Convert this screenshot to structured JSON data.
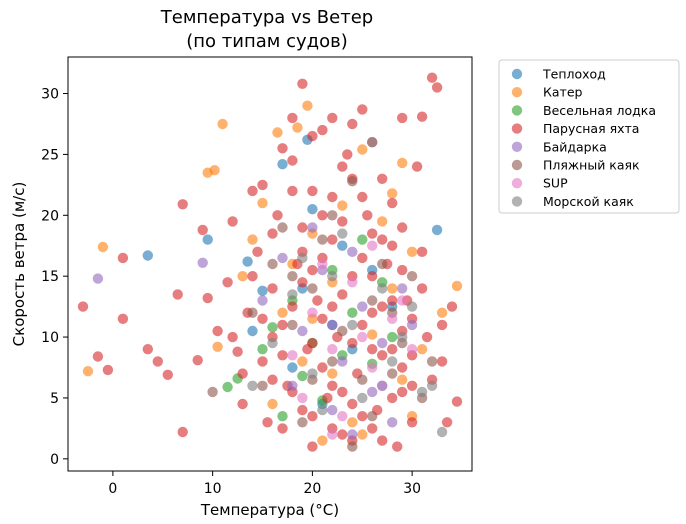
{
  "chart_data": {
    "type": "scatter",
    "title": [
      "Температура vs Ветер",
      "(по типам судов)"
    ],
    "xlabel": "Температура (°C)",
    "ylabel": "Скорость ветра (м/с)",
    "xlim": [
      -4.5,
      36
    ],
    "ylim": [
      -1,
      33
    ],
    "xticks": [
      0,
      10,
      20,
      30
    ],
    "yticks": [
      0,
      5,
      10,
      15,
      20,
      25,
      30
    ],
    "grid": false,
    "legend_position": "outside-right-top",
    "series": [
      {
        "name": "Теплоход",
        "color": "#1f77b4",
        "points": [
          [
            3.5,
            16.7
          ],
          [
            9.5,
            18.0
          ],
          [
            13.5,
            16.2
          ],
          [
            17,
            24.2
          ],
          [
            19.5,
            26.2
          ],
          [
            32.5,
            18.8
          ],
          [
            20,
            20.5
          ],
          [
            15,
            13.8
          ],
          [
            22,
            11.0
          ],
          [
            26,
            15.5
          ],
          [
            24,
            9.0
          ],
          [
            18,
            7.5
          ],
          [
            28,
            12.5
          ],
          [
            14,
            10.5
          ],
          [
            21,
            4.5
          ],
          [
            27,
            6.0
          ],
          [
            23,
            17.5
          ],
          [
            19,
            14.0
          ]
        ]
      },
      {
        "name": "Катер",
        "color": "#ff7f0e",
        "points": [
          [
            -1.0,
            17.4
          ],
          [
            -2.5,
            7.2
          ],
          [
            9.5,
            23.5
          ],
          [
            10.2,
            23.7
          ],
          [
            11,
            27.5
          ],
          [
            16.5,
            26.8
          ],
          [
            18.5,
            27.2
          ],
          [
            19.5,
            29.0
          ],
          [
            25,
            25.4
          ],
          [
            29,
            24.3
          ],
          [
            34.5,
            14.2
          ],
          [
            10.5,
            9.2
          ],
          [
            15,
            21.0
          ],
          [
            20,
            18.5
          ],
          [
            28,
            21.8
          ],
          [
            30,
            17.0
          ],
          [
            22,
            14.5
          ],
          [
            26,
            10.2
          ],
          [
            17,
            12.0
          ],
          [
            24,
            3.0
          ],
          [
            21,
            1.5
          ],
          [
            31,
            9.0
          ],
          [
            13,
            15.0
          ],
          [
            27,
            19.5
          ],
          [
            19,
            8.0
          ],
          [
            23,
            20.8
          ],
          [
            29,
            6.5
          ],
          [
            16,
            4.5
          ],
          [
            33,
            12.0
          ],
          [
            25,
            2.0
          ],
          [
            20,
            11.5
          ],
          [
            18,
            16.0
          ],
          [
            28,
            14.0
          ],
          [
            22,
            7.0
          ],
          [
            14,
            18.0
          ],
          [
            30,
            3.5
          ]
        ]
      },
      {
        "name": "Весельная лодка",
        "color": "#2ca02c",
        "points": [
          [
            11.5,
            5.9
          ],
          [
            12.5,
            6.6
          ],
          [
            16,
            10.8
          ],
          [
            20,
            9.5
          ],
          [
            24,
            12.0
          ],
          [
            26,
            7.8
          ],
          [
            22,
            15.5
          ],
          [
            18,
            13.0
          ],
          [
            28,
            10.0
          ],
          [
            21,
            4.8
          ],
          [
            25,
            18.0
          ],
          [
            19,
            6.8
          ],
          [
            23,
            8.5
          ],
          [
            27,
            14.5
          ],
          [
            17,
            3.5
          ],
          [
            15,
            9.0
          ]
        ]
      },
      {
        "name": "Парусная яхта",
        "color": "#d62728",
        "points": [
          [
            -3,
            12.5
          ],
          [
            -1.5,
            8.4
          ],
          [
            1,
            11.5
          ],
          [
            1,
            16.5
          ],
          [
            -0.5,
            7.3
          ],
          [
            3.5,
            9.0
          ],
          [
            4.5,
            8.0
          ],
          [
            5.5,
            6.9
          ],
          [
            6.5,
            13.5
          ],
          [
            7,
            20.9
          ],
          [
            7,
            2.2
          ],
          [
            8.5,
            8.1
          ],
          [
            9,
            18.8
          ],
          [
            9.5,
            13.2
          ],
          [
            10.5,
            10.5
          ],
          [
            11.5,
            14.5
          ],
          [
            12,
            19.5
          ],
          [
            12.5,
            8.8
          ],
          [
            13,
            4.5
          ],
          [
            13.5,
            12.0
          ],
          [
            14,
            22.0
          ],
          [
            14.5,
            17.0
          ],
          [
            15,
            8.0
          ],
          [
            15.5,
            3.0
          ],
          [
            16,
            14.0
          ],
          [
            16.5,
            20.0
          ],
          [
            17,
            11.0
          ],
          [
            17.5,
            6.0
          ],
          [
            18,
            28.0
          ],
          [
            18.5,
            16.0
          ],
          [
            19,
            30.8
          ],
          [
            19.5,
            9.0
          ],
          [
            20,
            22.0
          ],
          [
            20.5,
            13.0
          ],
          [
            21,
            27.0
          ],
          [
            21.5,
            5.0
          ],
          [
            22,
            18.0
          ],
          [
            22.5,
            10.0
          ],
          [
            23,
            2.0
          ],
          [
            23.5,
            25.0
          ],
          [
            24,
            15.0
          ],
          [
            24.5,
            7.0
          ],
          [
            25,
            28.7
          ],
          [
            25.5,
            20.0
          ],
          [
            26,
            12.0
          ],
          [
            26.5,
            4.0
          ],
          [
            27,
            23.0
          ],
          [
            27.5,
            16.0
          ],
          [
            28,
            9.0
          ],
          [
            28.5,
            1.0
          ],
          [
            29,
            19.0
          ],
          [
            29.5,
            13.0
          ],
          [
            30,
            6.0
          ],
          [
            30.5,
            24.0
          ],
          [
            31,
            17.0
          ],
          [
            31.5,
            10.0
          ],
          [
            32,
            31.3
          ],
          [
            32.5,
            30.5
          ],
          [
            33,
            8.0
          ],
          [
            33.5,
            3.0
          ],
          [
            34,
            12.5
          ],
          [
            34.5,
            4.7
          ],
          [
            16,
            18.5
          ],
          [
            18,
            24.5
          ],
          [
            20,
            26.5
          ],
          [
            22,
            21.5
          ],
          [
            24,
            23.0
          ],
          [
            26,
            26.0
          ],
          [
            28,
            21.0
          ],
          [
            19,
            19.0
          ],
          [
            21,
            16.5
          ],
          [
            23,
            13.5
          ],
          [
            25,
            11.0
          ],
          [
            27,
            8.5
          ],
          [
            29,
            5.5
          ],
          [
            17,
            2.5
          ],
          [
            19,
            4.0
          ],
          [
            21,
            7.5
          ],
          [
            23,
            5.5
          ],
          [
            25,
            3.5
          ],
          [
            27,
            1.5
          ],
          [
            29,
            10.5
          ],
          [
            31,
            14.0
          ],
          [
            18,
            12.5
          ],
          [
            20,
            9.5
          ],
          [
            22,
            12.5
          ],
          [
            24,
            9.5
          ],
          [
            26,
            15.0
          ],
          [
            28,
            17.5
          ],
          [
            30,
            11.5
          ],
          [
            16,
            6.5
          ],
          [
            15,
            11.5
          ],
          [
            14,
            15.0
          ],
          [
            13,
            7.0
          ],
          [
            12,
            10.0
          ],
          [
            30,
            3.0
          ],
          [
            32,
            6.5
          ],
          [
            33,
            11.0
          ],
          [
            20,
            1.0
          ],
          [
            22,
            28.0
          ],
          [
            18,
            22.0
          ],
          [
            24,
            27.5
          ],
          [
            26,
            18.5
          ],
          [
            28,
            13.0
          ],
          [
            17,
            8.5
          ],
          [
            19,
            14.5
          ],
          [
            21,
            11.5
          ],
          [
            23,
            19.5
          ],
          [
            25,
            16.5
          ],
          [
            27,
            12.5
          ],
          [
            29,
            7.5
          ],
          [
            16,
            10.0
          ],
          [
            20,
            15.5
          ],
          [
            22,
            6.0
          ],
          [
            24,
            4.5
          ],
          [
            26,
            9.0
          ],
          [
            28,
            5.0
          ],
          [
            30,
            8.5
          ],
          [
            18,
            5.5
          ],
          [
            20,
            3.5
          ],
          [
            22,
            2.5
          ],
          [
            24,
            1.5
          ],
          [
            26,
            2.5
          ],
          [
            31,
            28.1
          ],
          [
            29,
            28.0
          ],
          [
            17,
            25.5
          ],
          [
            15,
            22.5
          ],
          [
            23,
            24.0
          ],
          [
            25,
            21.5
          ],
          [
            21,
            20.0
          ],
          [
            19,
            17.0
          ],
          [
            27,
            18.0
          ],
          [
            29,
            15.5
          ]
        ]
      },
      {
        "name": "Байдарка",
        "color": "#9467bd",
        "points": [
          [
            -1.5,
            14.8
          ],
          [
            9,
            16.1
          ],
          [
            15,
            13.0
          ],
          [
            19,
            10.5
          ],
          [
            21,
            15.5
          ],
          [
            23,
            8.0
          ],
          [
            25,
            12.5
          ],
          [
            27,
            9.5
          ],
          [
            29,
            14.0
          ],
          [
            18,
            6.0
          ],
          [
            20,
            19.0
          ],
          [
            22,
            11.0
          ],
          [
            24,
            17.0
          ],
          [
            26,
            5.5
          ],
          [
            28,
            3.0
          ],
          [
            17,
            16.5
          ],
          [
            30,
            11.0
          ],
          [
            24,
            2.0
          ],
          [
            22,
            4.0
          ]
        ]
      },
      {
        "name": "Пляжный каяк",
        "color": "#8c564b",
        "points": [
          [
            10,
            5.5
          ],
          [
            15,
            6.0
          ],
          [
            16,
            16.0
          ],
          [
            18,
            11.0
          ],
          [
            20,
            14.0
          ],
          [
            22,
            8.0
          ],
          [
            24,
            22.8
          ],
          [
            26,
            13.0
          ],
          [
            28,
            7.0
          ],
          [
            30,
            15.0
          ],
          [
            19,
            3.0
          ],
          [
            21,
            18.0
          ],
          [
            23,
            10.5
          ],
          [
            25,
            6.5
          ],
          [
            27,
            16.0
          ],
          [
            29,
            9.5
          ],
          [
            17,
            19.0
          ],
          [
            31,
            5.0
          ],
          [
            24,
            1.0
          ],
          [
            20,
            6.5
          ],
          [
            22,
            20.0
          ],
          [
            26,
            3.5
          ],
          [
            18,
            15.0
          ],
          [
            28,
            12.0
          ],
          [
            14,
            12.0
          ],
          [
            32,
            8.0
          ]
        ]
      },
      {
        "name": "SUP",
        "color": "#e377c2",
        "points": [
          [
            20,
            12.0
          ],
          [
            22,
            9.0
          ],
          [
            24,
            14.5
          ],
          [
            26,
            7.5
          ],
          [
            28,
            11.5
          ],
          [
            19,
            5.0
          ],
          [
            21,
            16.0
          ],
          [
            23,
            3.5
          ],
          [
            25,
            10.0
          ],
          [
            27,
            6.0
          ],
          [
            29,
            13.0
          ],
          [
            18,
            8.5
          ],
          [
            30,
            9.0
          ],
          [
            22,
            2.0
          ],
          [
            26,
            17.5
          ]
        ]
      },
      {
        "name": "Морской каяк",
        "color": "#7f7f7f",
        "points": [
          [
            14,
            6.0
          ],
          [
            16,
            9.5
          ],
          [
            18,
            13.5
          ],
          [
            20,
            7.0
          ],
          [
            22,
            15.0
          ],
          [
            24,
            11.0
          ],
          [
            26,
            26.0
          ],
          [
            28,
            8.0
          ],
          [
            30,
            12.5
          ],
          [
            32,
            6.0
          ],
          [
            33,
            2.2
          ],
          [
            31,
            5.5
          ],
          [
            21,
            4.0
          ],
          [
            23,
            18.5
          ],
          [
            25,
            5.0
          ],
          [
            27,
            14.0
          ],
          [
            29,
            10.0
          ],
          [
            19,
            16.5
          ]
        ]
      }
    ]
  }
}
